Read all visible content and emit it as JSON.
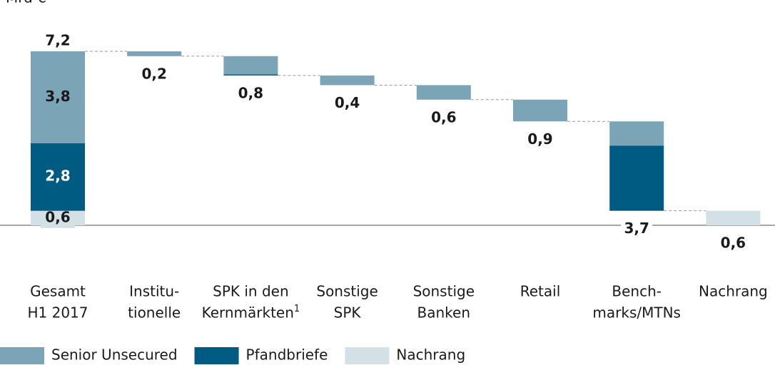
{
  "chart_data": {
    "type": "waterfall",
    "unit": "Mrd €",
    "categories": [
      [
        "Gesamt",
        "H1 2017"
      ],
      [
        "Institu-",
        "tionelle"
      ],
      [
        "SPK in den",
        "Kernmärkten"
      ],
      [
        "Sonstige",
        "SPK"
      ],
      [
        "Sonstige",
        "Banken"
      ],
      [
        "Retail"
      ],
      [
        "Bench-",
        "marks/MTNs"
      ],
      [
        "Nachrang"
      ]
    ],
    "footnote_marks": [
      null,
      null,
      "1",
      null,
      null,
      null,
      null,
      null
    ],
    "totals": [
      7.2,
      0.2,
      0.8,
      0.4,
      0.6,
      0.9,
      3.7,
      0.6
    ],
    "total_labels": [
      "7,2",
      "0,2",
      "0,8",
      "0,4",
      "0,6",
      "0,9",
      "3,7",
      "0,6"
    ],
    "series": [
      {
        "name": "Senior Unsecured",
        "color": "#7ba4b6",
        "values": [
          3.8,
          0.2,
          0.75,
          0.4,
          0.6,
          0.9,
          1.0,
          null
        ],
        "value_labels": [
          "3,8",
          null,
          null,
          null,
          null,
          null,
          null,
          null
        ]
      },
      {
        "name": "Pfandbriefe",
        "color": "#005b82",
        "values": [
          2.8,
          null,
          0.05,
          null,
          null,
          null,
          2.7,
          null
        ],
        "value_labels": [
          "2,8",
          null,
          null,
          null,
          null,
          null,
          null,
          null
        ]
      },
      {
        "name": "Nachrang",
        "color": "#d3e0e6",
        "values": [
          0.6,
          null,
          null,
          null,
          null,
          null,
          null,
          0.6
        ],
        "value_labels": [
          "0,6",
          null,
          null,
          null,
          null,
          null,
          null,
          null
        ]
      }
    ],
    "ylim": [
      0,
      7.2
    ]
  }
}
